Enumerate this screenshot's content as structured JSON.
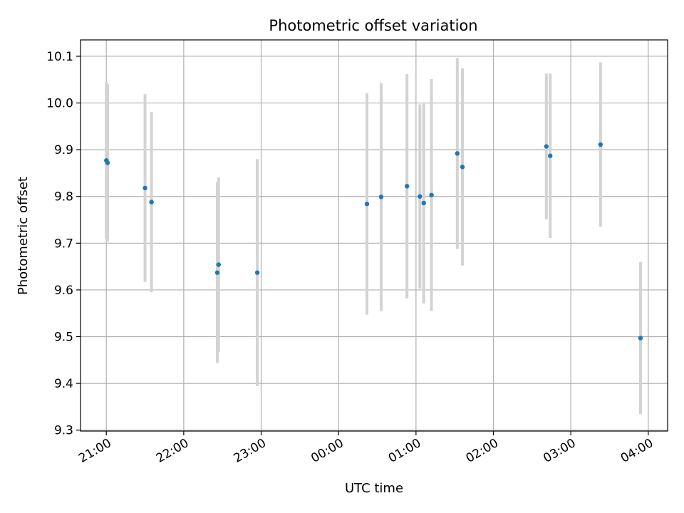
{
  "chart_data": {
    "type": "scatter",
    "title": "Photometric offset variation",
    "xlabel": "UTC time",
    "ylabel": "Photometric offset",
    "x_axis_kind": "time",
    "x_ticks": [
      "21:00",
      "22:00",
      "23:00",
      "00:00",
      "01:00",
      "02:00",
      "03:00",
      "04:00"
    ],
    "x_range": [
      "20:40",
      "04:15"
    ],
    "y_ticks": [
      "9.3",
      "9.4",
      "9.5",
      "9.6",
      "9.7",
      "9.8",
      "9.9",
      "10.0",
      "10.1"
    ],
    "ylim": [
      9.298,
      10.135
    ],
    "grid": true,
    "errorbar_color": "#d3d3d3",
    "point_color": "#1f77b4",
    "points": [
      {
        "time": "21:00",
        "y": 9.877,
        "yerr": 0.168
      },
      {
        "time": "21:01",
        "y": 9.872,
        "yerr": 0.168
      },
      {
        "time": "21:30",
        "y": 9.818,
        "yerr": 0.201
      },
      {
        "time": "21:35",
        "y": 9.788,
        "yerr": 0.193
      },
      {
        "time": "22:26",
        "y": 9.637,
        "yerr": 0.193
      },
      {
        "time": "22:27",
        "y": 9.654,
        "yerr": 0.187
      },
      {
        "time": "22:57",
        "y": 9.637,
        "yerr": 0.243
      },
      {
        "time": "00:22",
        "y": 9.784,
        "yerr": 0.237
      },
      {
        "time": "00:33",
        "y": 9.799,
        "yerr": 0.244
      },
      {
        "time": "00:53",
        "y": 9.822,
        "yerr": 0.24
      },
      {
        "time": "01:03",
        "y": 9.8,
        "yerr": 0.197
      },
      {
        "time": "01:06",
        "y": 9.786,
        "yerr": 0.215
      },
      {
        "time": "01:12",
        "y": 9.803,
        "yerr": 0.248
      },
      {
        "time": "01:32",
        "y": 9.892,
        "yerr": 0.204
      },
      {
        "time": "01:36",
        "y": 9.863,
        "yerr": 0.211
      },
      {
        "time": "02:41",
        "y": 9.907,
        "yerr": 0.156
      },
      {
        "time": "02:44",
        "y": 9.887,
        "yerr": 0.176
      },
      {
        "time": "03:23",
        "y": 9.911,
        "yerr": 0.176
      },
      {
        "time": "03:54",
        "y": 9.497,
        "yerr": 0.163
      }
    ]
  }
}
